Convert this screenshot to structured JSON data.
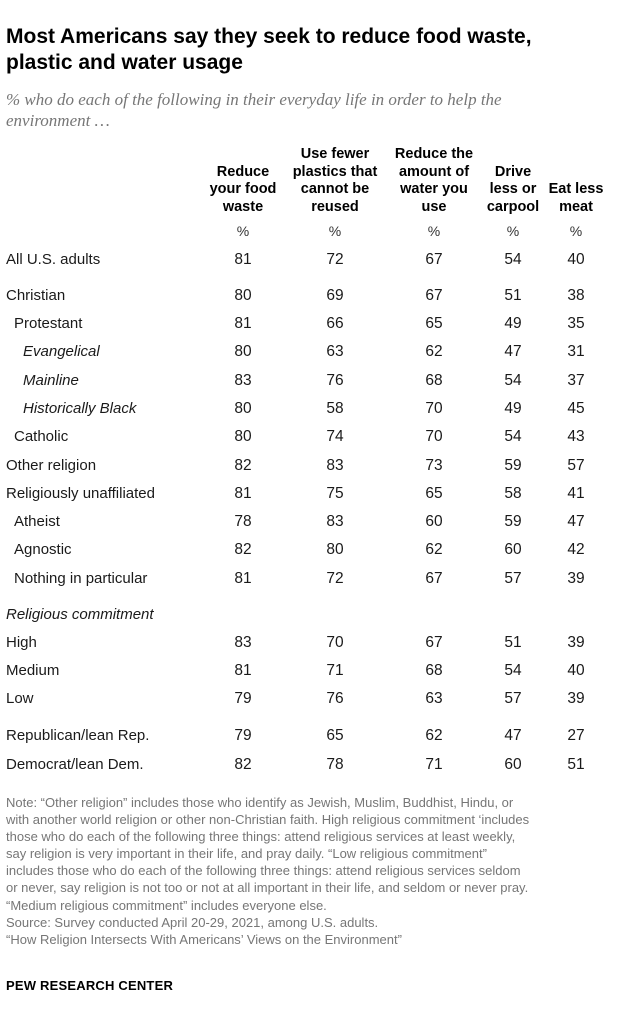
{
  "title_lines": [
    "Most Americans say they seek to reduce food waste,",
    "plastic and water usage"
  ],
  "subtitle_lines": [
    "% who do each of the following in their everyday life in order to help the",
    "environment …"
  ],
  "columns": [
    {
      "lines": [
        "Reduce",
        "your food",
        "waste"
      ],
      "unit": "%"
    },
    {
      "lines": [
        "Use fewer",
        "plastics that",
        "cannot be",
        "reused"
      ],
      "unit": "%"
    },
    {
      "lines": [
        "Reduce the",
        "amount of",
        "water you",
        "use"
      ],
      "unit": "%"
    },
    {
      "lines": [
        "Drive",
        "less or",
        "carpool"
      ],
      "unit": "%"
    },
    {
      "lines": [
        "Eat less",
        "meat"
      ],
      "unit": "%"
    }
  ],
  "chart_data": {
    "type": "table",
    "title": "Most Americans say they seek to reduce food waste, plastic and water usage",
    "subtitle": "% who do each of the following in their everyday life in order to help the environment …",
    "columns": [
      "Reduce your food waste",
      "Use fewer plastics that cannot be reused",
      "Reduce the amount of water you use",
      "Drive less or carpool",
      "Eat less meat"
    ],
    "rows": [
      {
        "label": "All U.S. adults",
        "level": 0,
        "values": [
          81,
          72,
          67,
          54,
          40
        ]
      },
      {
        "label": "Christian",
        "level": 0,
        "values": [
          80,
          69,
          67,
          51,
          38
        ]
      },
      {
        "label": "Protestant",
        "level": 1,
        "values": [
          81,
          66,
          65,
          49,
          35
        ]
      },
      {
        "label": "Evangelical",
        "level": 2,
        "values": [
          80,
          63,
          62,
          47,
          31
        ]
      },
      {
        "label": "Mainline",
        "level": 2,
        "values": [
          83,
          76,
          68,
          54,
          37
        ]
      },
      {
        "label": "Historically Black",
        "level": 2,
        "values": [
          80,
          58,
          70,
          49,
          45
        ]
      },
      {
        "label": "Catholic",
        "level": 1,
        "values": [
          80,
          74,
          70,
          54,
          43
        ]
      },
      {
        "label": "Other religion",
        "level": 0,
        "values": [
          82,
          83,
          73,
          59,
          57
        ]
      },
      {
        "label": "Religiously unaffiliated",
        "level": 0,
        "values": [
          81,
          75,
          65,
          58,
          41
        ]
      },
      {
        "label": "Atheist",
        "level": 1,
        "values": [
          78,
          83,
          60,
          59,
          47
        ]
      },
      {
        "label": "Agnostic",
        "level": 1,
        "values": [
          82,
          80,
          62,
          60,
          42
        ]
      },
      {
        "label": "Nothing in particular",
        "level": 1,
        "values": [
          81,
          72,
          67,
          57,
          39
        ]
      },
      {
        "label": "Religious commitment",
        "level": "section",
        "values": []
      },
      {
        "label": "High",
        "level": 0,
        "values": [
          83,
          70,
          67,
          51,
          39
        ]
      },
      {
        "label": "Medium",
        "level": 0,
        "values": [
          81,
          71,
          68,
          54,
          40
        ]
      },
      {
        "label": "Low",
        "level": 0,
        "values": [
          79,
          76,
          63,
          57,
          39
        ]
      },
      {
        "label": "Republican/lean Rep.",
        "level": 0,
        "values": [
          79,
          65,
          62,
          47,
          27
        ]
      },
      {
        "label": "Democrat/lean Dem.",
        "level": 0,
        "values": [
          82,
          78,
          71,
          60,
          51
        ]
      }
    ]
  },
  "note_lines": [
    "Note: “Other religion” includes those who identify as Jewish, Muslim, Buddhist, Hindu, or",
    "with another world religion or other non-Christian faith. High religious commitment ‘includes",
    "those who do each of the following three things: attend religious services at least weekly,",
    "say religion is very important in their life, and pray daily. “Low religious commitment”",
    "includes those who do each of the following three things: attend religious services seldom",
    "or never, say religion is not too or not at all important in their life, and seldom or never pray.",
    "“Medium religious commitment” includes everyone else.",
    "Source: Survey conducted April 20-29, 2021, among U.S. adults.",
    "“How Religion Intersects With Americans’ Views on the Environment”"
  ],
  "brand": "PEW RESEARCH CENTER"
}
